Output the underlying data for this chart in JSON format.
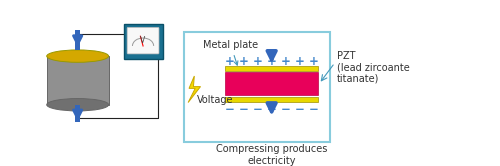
{
  "bg_color": "#ffffff",
  "cylinder_color": "#909090",
  "cylinder_top_color": "#d4a800",
  "cylinder_bottom_color": "#707070",
  "arrow_color": "#3366bb",
  "voltmeter_bg": "#1a7090",
  "voltmeter_face": "#f8f8f8",
  "lightning_fill": "#f5d800",
  "lightning_edge": "#c8a800",
  "pzt_color": "#e8005a",
  "plate_color": "#e8d800",
  "plate_edge": "#a09000",
  "plus_color": "#4488cc",
  "minus_color": "#4488cc",
  "box_edge": "#88ccdd",
  "label_metal": "Metal plate",
  "label_voltage": "Voltage",
  "label_pzt": "PZT\n(lead zircoante\ntitanate)",
  "label_compress": "Compressing produces\nelectricity",
  "text_color": "#333333",
  "annotation_arrow_color": "#4499bb",
  "fontsize": 7.0,
  "wire_color": "#222222"
}
